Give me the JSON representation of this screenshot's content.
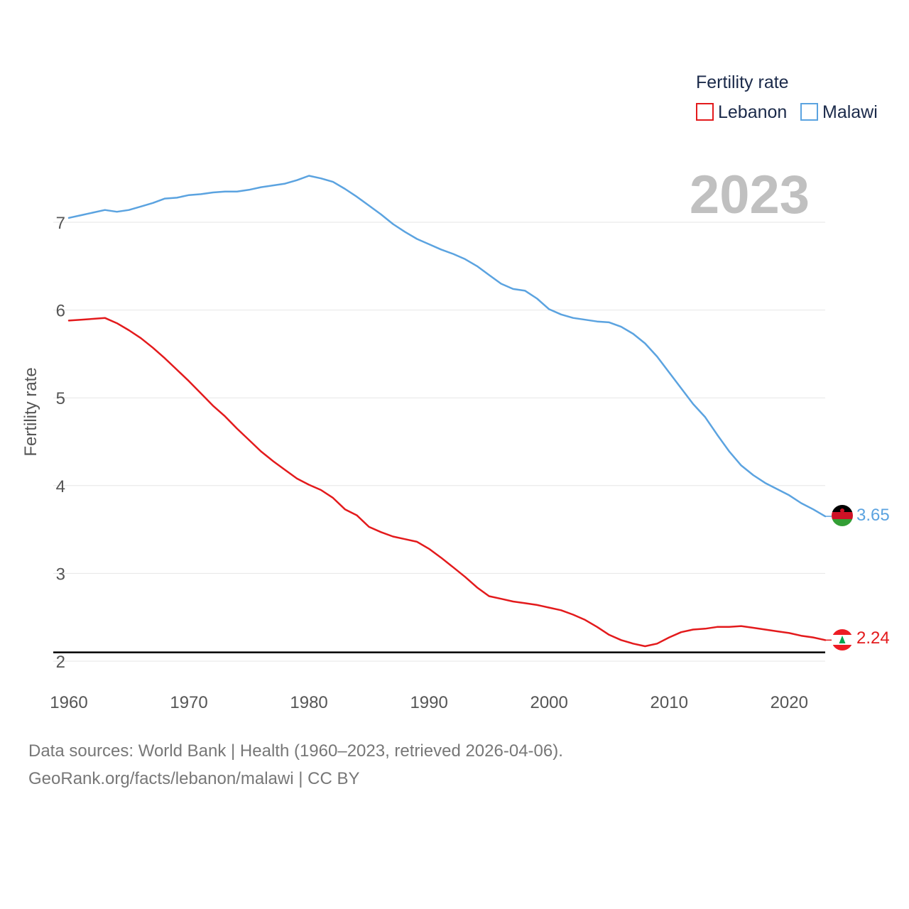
{
  "colors": {
    "lebanon": "#e31a1c",
    "malawi": "#5ba3e0",
    "grid": "#e6e6e6",
    "reference": "#000000",
    "text": "#555555",
    "legend_text": "#1b2a4a",
    "watermark": "#c0c0c0"
  },
  "chart_data": {
    "type": "line",
    "title": "",
    "legend_title": "Fertility rate",
    "ylabel": "Fertility rate",
    "xlabel": "",
    "xlim": [
      1960,
      2023
    ],
    "ylim": [
      1.9,
      7.9
    ],
    "x_ticks": [
      1960,
      1970,
      1980,
      1990,
      2000,
      2010,
      2020
    ],
    "x_tick_labels": [
      "1960",
      "1970",
      "1980",
      "1990",
      "2000",
      "2010",
      "2020"
    ],
    "y_ticks": [
      2,
      3,
      4,
      5,
      6,
      7
    ],
    "y_tick_labels": [
      "2",
      "3",
      "4",
      "5",
      "6",
      "7"
    ],
    "reference_line": 2.1,
    "current_year_label": "2023",
    "legend_position": "top-right",
    "x": [
      1960,
      1961,
      1962,
      1963,
      1964,
      1965,
      1966,
      1967,
      1968,
      1969,
      1970,
      1971,
      1972,
      1973,
      1974,
      1975,
      1976,
      1977,
      1978,
      1979,
      1980,
      1981,
      1982,
      1983,
      1984,
      1985,
      1986,
      1987,
      1988,
      1989,
      1990,
      1991,
      1992,
      1993,
      1994,
      1995,
      1996,
      1997,
      1998,
      1999,
      2000,
      2001,
      2002,
      2003,
      2004,
      2005,
      2006,
      2007,
      2008,
      2009,
      2010,
      2011,
      2012,
      2013,
      2014,
      2015,
      2016,
      2017,
      2018,
      2019,
      2020,
      2021,
      2022,
      2023
    ],
    "series": [
      {
        "name": "Lebanon",
        "color": "#e31a1c",
        "flag": "lebanon-flag",
        "end_label": "2.24",
        "values": [
          5.88,
          5.89,
          5.9,
          5.91,
          5.85,
          5.77,
          5.68,
          5.57,
          5.45,
          5.32,
          5.19,
          5.05,
          4.91,
          4.79,
          4.65,
          4.52,
          4.39,
          4.28,
          4.18,
          4.08,
          4.01,
          3.95,
          3.86,
          3.73,
          3.66,
          3.53,
          3.47,
          3.42,
          3.39,
          3.36,
          3.28,
          3.18,
          3.07,
          2.96,
          2.84,
          2.74,
          2.71,
          2.68,
          2.66,
          2.64,
          2.61,
          2.58,
          2.53,
          2.47,
          2.39,
          2.3,
          2.24,
          2.2,
          2.17,
          2.2,
          2.27,
          2.33,
          2.36,
          2.37,
          2.39,
          2.39,
          2.4,
          2.38,
          2.36,
          2.34,
          2.32,
          2.29,
          2.27,
          2.24
        ]
      },
      {
        "name": "Malawi",
        "color": "#5ba3e0",
        "flag": "malawi-flag",
        "end_label": "3.65",
        "values": [
          7.05,
          7.08,
          7.11,
          7.14,
          7.12,
          7.14,
          7.18,
          7.22,
          7.27,
          7.28,
          7.31,
          7.32,
          7.34,
          7.35,
          7.35,
          7.37,
          7.4,
          7.42,
          7.44,
          7.48,
          7.53,
          7.5,
          7.46,
          7.38,
          7.29,
          7.19,
          7.09,
          6.98,
          6.89,
          6.81,
          6.75,
          6.69,
          6.64,
          6.58,
          6.5,
          6.4,
          6.3,
          6.24,
          6.22,
          6.13,
          6.01,
          5.95,
          5.91,
          5.89,
          5.87,
          5.86,
          5.81,
          5.73,
          5.62,
          5.47,
          5.29,
          5.11,
          4.93,
          4.78,
          4.58,
          4.39,
          4.23,
          4.12,
          4.03,
          3.96,
          3.89,
          3.8,
          3.73,
          3.65
        ]
      }
    ]
  },
  "footer": {
    "sources": "Data sources: World Bank | Health (1960–2023, retrieved 2026-04-06).",
    "attribution": "GeoRank.org/facts/lebanon/malawi | CC BY"
  }
}
